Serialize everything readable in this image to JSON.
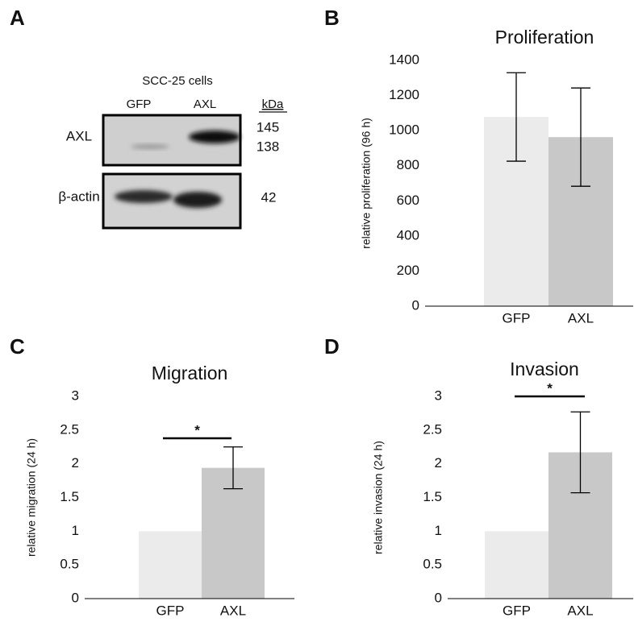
{
  "blot": {
    "panel": "A",
    "title": "SCC-25 cells",
    "lanes": [
      "GFP",
      "AXL"
    ],
    "unit": "kDa",
    "rows": [
      {
        "label": "AXL",
        "sizes": [
          "145",
          "138"
        ]
      },
      {
        "label": "β-actin",
        "sizes": [
          "42"
        ]
      }
    ]
  },
  "chart_data": [
    {
      "type": "bar",
      "panel": "B",
      "title": "Proliferation",
      "y_label": "relative proliferation (96 h)",
      "categories": [
        "GFP",
        "AXL"
      ],
      "values": [
        1078,
        963
      ],
      "errors": [
        252,
        280
      ],
      "colors": [
        "#ebebeb",
        "#c8c8c8"
      ],
      "ylim": [
        0,
        1400
      ],
      "yticks": [
        0,
        200,
        400,
        600,
        800,
        1000,
        1200,
        1400
      ]
    },
    {
      "type": "bar",
      "panel": "C",
      "title": "Migration",
      "y_label": "relative migration (24 h)",
      "categories": [
        "GFP",
        "AXL"
      ],
      "values": [
        1,
        1.94
      ],
      "errors": [
        null,
        0.31
      ],
      "colors": [
        "#ebebeb",
        "#c8c8c8"
      ],
      "ylim": [
        0,
        3
      ],
      "yticks": [
        0,
        0.5,
        1,
        1.5,
        2,
        2.5,
        3
      ],
      "significance": "*"
    },
    {
      "type": "bar",
      "panel": "D",
      "title": "Invasion",
      "y_label": "relative invasion (24 h)",
      "categories": [
        "GFP",
        "AXL"
      ],
      "values": [
        1,
        2.17
      ],
      "errors": [
        null,
        0.6
      ],
      "colors": [
        "#ebebeb",
        "#c8c8c8"
      ],
      "ylim": [
        0,
        3
      ],
      "yticks": [
        0,
        0.5,
        1,
        1.5,
        2,
        2.5,
        3
      ],
      "significance": "*"
    }
  ]
}
